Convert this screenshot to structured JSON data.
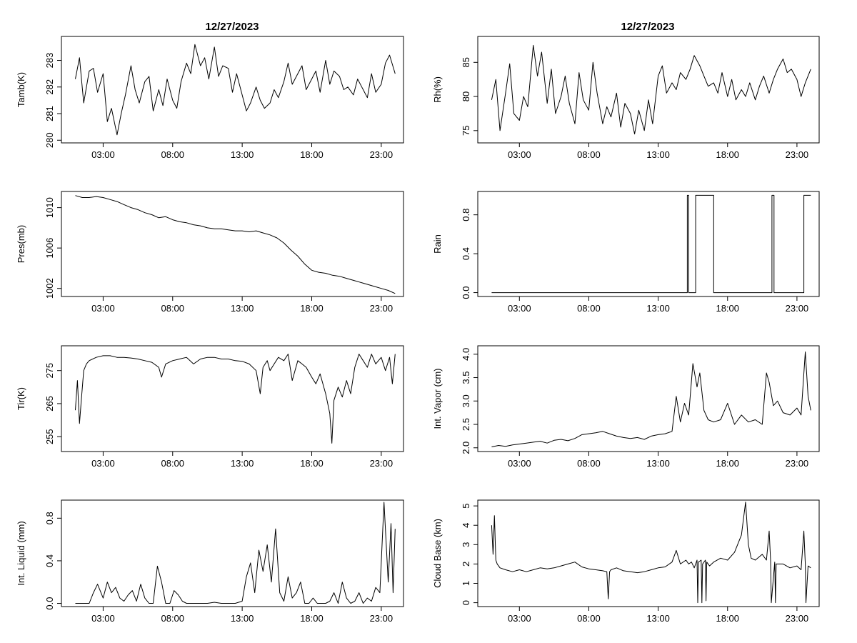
{
  "page": {
    "date_title": "12/27/2023"
  },
  "chart_data": [
    {
      "id": "tamb",
      "type": "line",
      "title": "12/27/2023",
      "ylabel": "Tamb(K)",
      "xlim": [
        0,
        24.6
      ],
      "ylim": [
        279.9,
        283.9
      ],
      "xticks": [
        3,
        8,
        13,
        18,
        23
      ],
      "xtick_labels": [
        "03:00",
        "08:00",
        "13:00",
        "18:00",
        "23:00"
      ],
      "yticks": [
        280,
        281,
        282,
        283
      ],
      "ytick_labels": [
        "280",
        "281",
        "282",
        "283"
      ],
      "x": [
        1.0,
        1.3,
        1.6,
        2.0,
        2.3,
        2.6,
        3.0,
        3.3,
        3.6,
        4.0,
        4.3,
        4.6,
        5.0,
        5.3,
        5.6,
        6.0,
        6.3,
        6.6,
        7.0,
        7.3,
        7.6,
        8.0,
        8.3,
        8.6,
        9.0,
        9.3,
        9.6,
        10.0,
        10.3,
        10.6,
        11.0,
        11.3,
        11.6,
        12.0,
        12.3,
        12.6,
        13.0,
        13.3,
        13.6,
        14.0,
        14.3,
        14.6,
        15.0,
        15.3,
        15.6,
        16.0,
        16.3,
        16.6,
        17.0,
        17.3,
        17.6,
        18.0,
        18.3,
        18.6,
        19.0,
        19.3,
        19.6,
        20.0,
        20.3,
        20.6,
        21.0,
        21.3,
        21.6,
        22.0,
        22.3,
        22.6,
        23.0,
        23.3,
        23.6,
        24.0
      ],
      "values": [
        282.3,
        283.1,
        281.4,
        282.6,
        282.7,
        281.8,
        282.5,
        280.7,
        281.2,
        280.2,
        281.0,
        281.7,
        282.8,
        281.9,
        281.4,
        282.2,
        282.4,
        281.1,
        281.9,
        281.3,
        282.3,
        281.5,
        281.2,
        282.2,
        282.9,
        282.5,
        283.6,
        282.8,
        283.1,
        282.3,
        283.5,
        282.4,
        282.8,
        282.7,
        281.8,
        282.5,
        281.7,
        281.1,
        281.4,
        282.0,
        281.5,
        281.2,
        281.4,
        281.9,
        281.6,
        282.2,
        282.9,
        282.1,
        282.5,
        282.8,
        281.9,
        282.3,
        282.6,
        281.8,
        283.0,
        282.1,
        282.6,
        282.4,
        281.9,
        282.0,
        281.7,
        282.3,
        282.0,
        281.6,
        282.5,
        281.8,
        282.1,
        282.9,
        283.2,
        282.5
      ]
    },
    {
      "id": "rh",
      "type": "line",
      "title": "12/27/2023",
      "ylabel": "Rh(%)",
      "xlim": [
        0,
        24.6
      ],
      "ylim": [
        73.2,
        88.8
      ],
      "xticks": [
        3,
        8,
        13,
        18,
        23
      ],
      "xtick_labels": [
        "03:00",
        "08:00",
        "13:00",
        "18:00",
        "23:00"
      ],
      "yticks": [
        75,
        80,
        85
      ],
      "ytick_labels": [
        "75",
        "80",
        "85"
      ],
      "x": [
        1.0,
        1.3,
        1.6,
        2.0,
        2.3,
        2.6,
        3.0,
        3.3,
        3.6,
        4.0,
        4.3,
        4.6,
        5.0,
        5.3,
        5.6,
        6.0,
        6.3,
        6.6,
        7.0,
        7.3,
        7.6,
        8.0,
        8.3,
        8.6,
        9.0,
        9.3,
        9.6,
        10.0,
        10.3,
        10.6,
        11.0,
        11.3,
        11.6,
        12.0,
        12.3,
        12.6,
        13.0,
        13.3,
        13.6,
        14.0,
        14.3,
        14.6,
        15.0,
        15.3,
        15.6,
        16.0,
        16.3,
        16.6,
        17.0,
        17.3,
        17.6,
        18.0,
        18.3,
        18.6,
        19.0,
        19.3,
        19.6,
        20.0,
        20.3,
        20.6,
        21.0,
        21.3,
        21.6,
        22.0,
        22.3,
        22.6,
        23.0,
        23.3,
        23.6,
        24.0
      ],
      "values": [
        79.5,
        82.5,
        75.0,
        80.5,
        84.8,
        77.5,
        76.5,
        80.0,
        78.5,
        87.5,
        83.0,
        86.5,
        79.0,
        84.0,
        77.5,
        80.0,
        83.0,
        79.0,
        76.0,
        83.5,
        79.5,
        78.0,
        85.0,
        80.5,
        76.0,
        78.5,
        77.0,
        80.5,
        75.5,
        79.0,
        77.5,
        74.5,
        78.0,
        75.0,
        79.5,
        76.0,
        83.0,
        84.5,
        80.5,
        82.0,
        81.0,
        83.5,
        82.5,
        84.0,
        86.0,
        84.5,
        83.0,
        81.5,
        82.0,
        80.5,
        83.5,
        80.0,
        82.5,
        79.5,
        81.0,
        80.0,
        82.0,
        79.5,
        81.5,
        83.0,
        80.5,
        82.5,
        84.0,
        85.5,
        83.5,
        84.0,
        82.5,
        80.0,
        82.0,
        84.0
      ]
    },
    {
      "id": "pres",
      "type": "line",
      "ylabel": "Pres(mb)",
      "xlim": [
        0,
        24.6
      ],
      "ylim": [
        1001.2,
        1011.6
      ],
      "xticks": [
        3,
        8,
        13,
        18,
        23
      ],
      "xtick_labels": [
        "03:00",
        "08:00",
        "13:00",
        "18:00",
        "23:00"
      ],
      "yticks": [
        1002,
        1006,
        1010
      ],
      "ytick_labels": [
        "1002",
        "1006",
        "1010"
      ],
      "x": [
        1.0,
        1.5,
        2.0,
        2.5,
        3.0,
        3.5,
        4.0,
        4.5,
        5.0,
        5.5,
        6.0,
        6.5,
        7.0,
        7.5,
        8.0,
        8.5,
        9.0,
        9.5,
        10.0,
        10.5,
        11.0,
        11.5,
        12.0,
        12.5,
        13.0,
        13.5,
        14.0,
        14.5,
        15.0,
        15.5,
        16.0,
        16.5,
        17.0,
        17.5,
        18.0,
        18.5,
        19.0,
        19.5,
        20.0,
        20.5,
        21.0,
        21.5,
        22.0,
        22.5,
        23.0,
        23.5,
        24.0
      ],
      "values": [
        1011.2,
        1011.0,
        1011.0,
        1011.1,
        1011.0,
        1010.8,
        1010.6,
        1010.3,
        1010.0,
        1009.8,
        1009.5,
        1009.3,
        1009.0,
        1009.1,
        1008.8,
        1008.6,
        1008.5,
        1008.3,
        1008.2,
        1008.0,
        1007.9,
        1007.9,
        1007.8,
        1007.7,
        1007.7,
        1007.6,
        1007.7,
        1007.5,
        1007.3,
        1007.0,
        1006.5,
        1005.8,
        1005.2,
        1004.4,
        1003.8,
        1003.6,
        1003.5,
        1003.3,
        1003.2,
        1003.0,
        1002.8,
        1002.6,
        1002.4,
        1002.2,
        1002.0,
        1001.8,
        1001.5
      ]
    },
    {
      "id": "rain",
      "type": "line",
      "ylabel": "Rain",
      "xlim": [
        0,
        24.6
      ],
      "ylim": [
        -0.04,
        1.04
      ],
      "xticks": [
        3,
        8,
        13,
        18,
        23
      ],
      "xtick_labels": [
        "03:00",
        "08:00",
        "13:00",
        "18:00",
        "23:00"
      ],
      "yticks": [
        0.0,
        0.4,
        0.8
      ],
      "ytick_labels": [
        "0.0",
        "0.4",
        "0.8"
      ],
      "x": [
        1.0,
        15.1,
        15.1,
        15.2,
        15.2,
        15.7,
        15.7,
        17.0,
        17.0,
        21.2,
        21.2,
        21.35,
        21.35,
        23.5,
        23.5,
        24.0
      ],
      "values": [
        0,
        0,
        1,
        1,
        0,
        0,
        1,
        1,
        0,
        0,
        1,
        1,
        0,
        0,
        1,
        1
      ]
    },
    {
      "id": "tir",
      "type": "line",
      "ylabel": "Tir(K)",
      "xlim": [
        0,
        24.6
      ],
      "ylim": [
        250.5,
        282.5
      ],
      "xticks": [
        3,
        8,
        13,
        18,
        23
      ],
      "xtick_labels": [
        "03:00",
        "08:00",
        "13:00",
        "18:00",
        "23:00"
      ],
      "yticks": [
        255,
        265,
        275
      ],
      "ytick_labels": [
        "255",
        "265",
        "275"
      ],
      "x": [
        1.0,
        1.15,
        1.3,
        1.45,
        1.6,
        1.8,
        2.0,
        2.5,
        3.0,
        3.5,
        4.0,
        4.5,
        5.0,
        5.5,
        6.0,
        6.5,
        7.0,
        7.2,
        7.5,
        8.0,
        8.5,
        9.0,
        9.5,
        10.0,
        10.5,
        11.0,
        11.5,
        12.0,
        12.5,
        13.0,
        13.5,
        14.0,
        14.3,
        14.5,
        14.8,
        15.0,
        15.3,
        15.6,
        16.0,
        16.3,
        16.6,
        17.0,
        17.3,
        17.6,
        18.0,
        18.3,
        18.6,
        19.0,
        19.3,
        19.45,
        19.6,
        19.9,
        20.2,
        20.5,
        20.8,
        21.1,
        21.4,
        21.7,
        22.0,
        22.3,
        22.6,
        23.0,
        23.3,
        23.6,
        23.8,
        24.0
      ],
      "values": [
        263,
        272,
        259,
        267,
        275,
        277,
        278,
        279,
        279.5,
        279.5,
        279,
        279,
        278.8,
        278.5,
        278,
        277.5,
        276,
        273,
        277,
        278,
        278.5,
        279,
        277,
        278.5,
        279,
        279,
        278.5,
        278.5,
        278,
        277.8,
        277,
        275,
        268,
        276,
        278,
        275,
        277,
        279,
        278,
        280,
        272,
        278,
        277,
        276,
        273,
        271,
        274,
        268,
        262,
        253,
        266,
        270,
        267,
        272,
        268,
        276,
        280,
        278,
        276,
        280,
        277,
        279,
        275,
        279,
        271,
        280
      ]
    },
    {
      "id": "vapor",
      "type": "line",
      "ylabel": "Int. Vapor (cm)",
      "xlim": [
        0,
        24.6
      ],
      "ylim": [
        1.92,
        4.18
      ],
      "xticks": [
        3,
        8,
        13,
        18,
        23
      ],
      "xtick_labels": [
        "03:00",
        "08:00",
        "13:00",
        "18:00",
        "23:00"
      ],
      "yticks": [
        2.0,
        2.5,
        3.0,
        3.5,
        4.0
      ],
      "ytick_labels": [
        "2.0",
        "2.5",
        "3.0",
        "3.5",
        "4.0"
      ],
      "x": [
        1.0,
        1.5,
        2.0,
        2.5,
        3.0,
        3.5,
        4.0,
        4.5,
        5.0,
        5.5,
        6.0,
        6.5,
        7.0,
        7.5,
        8.0,
        8.5,
        9.0,
        9.5,
        10.0,
        10.5,
        11.0,
        11.5,
        12.0,
        12.5,
        13.0,
        13.5,
        14.0,
        14.3,
        14.6,
        14.9,
        15.2,
        15.5,
        15.8,
        16.0,
        16.3,
        16.6,
        17.0,
        17.5,
        18.0,
        18.5,
        19.0,
        19.5,
        20.0,
        20.5,
        20.8,
        21.0,
        21.3,
        21.6,
        22.0,
        22.5,
        23.0,
        23.3,
        23.6,
        23.8,
        24.0
      ],
      "values": [
        2.02,
        2.05,
        2.03,
        2.06,
        2.08,
        2.1,
        2.12,
        2.14,
        2.1,
        2.16,
        2.18,
        2.15,
        2.2,
        2.28,
        2.3,
        2.32,
        2.35,
        2.3,
        2.25,
        2.22,
        2.2,
        2.22,
        2.18,
        2.25,
        2.28,
        2.3,
        2.35,
        3.1,
        2.55,
        2.95,
        2.7,
        3.8,
        3.3,
        3.6,
        2.8,
        2.6,
        2.55,
        2.6,
        2.95,
        2.5,
        2.7,
        2.55,
        2.6,
        2.5,
        3.6,
        3.4,
        2.9,
        3.0,
        2.75,
        2.7,
        2.85,
        2.7,
        4.05,
        3.1,
        2.8
      ]
    },
    {
      "id": "liquid",
      "type": "line",
      "ylabel": "Int. Liquid (mm)",
      "xlim": [
        0,
        24.6
      ],
      "ylim": [
        -0.03,
        0.97
      ],
      "xticks": [
        3,
        8,
        13,
        18,
        23
      ],
      "xtick_labels": [
        "03:00",
        "08:00",
        "13:00",
        "18:00",
        "23:00"
      ],
      "yticks": [
        0.0,
        0.4,
        0.8
      ],
      "ytick_labels": [
        "0.0",
        "0.4",
        "0.8"
      ],
      "x": [
        1.0,
        1.5,
        2.0,
        2.3,
        2.6,
        3.0,
        3.3,
        3.6,
        3.9,
        4.2,
        4.5,
        4.8,
        5.1,
        5.4,
        5.7,
        6.0,
        6.3,
        6.6,
        6.9,
        7.2,
        7.5,
        7.8,
        8.1,
        8.4,
        8.7,
        9.0,
        9.3,
        9.6,
        10.0,
        10.5,
        11.0,
        11.5,
        12.0,
        12.5,
        13.0,
        13.3,
        13.6,
        13.9,
        14.2,
        14.5,
        14.8,
        15.1,
        15.4,
        15.7,
        16.0,
        16.3,
        16.6,
        16.9,
        17.2,
        17.5,
        17.8,
        18.1,
        18.4,
        18.7,
        19.0,
        19.3,
        19.6,
        19.9,
        20.2,
        20.5,
        20.8,
        21.1,
        21.4,
        21.7,
        22.0,
        22.3,
        22.6,
        22.9,
        23.2,
        23.5,
        23.7,
        23.85,
        24.0
      ],
      "values": [
        0.0,
        0.0,
        0.0,
        0.1,
        0.18,
        0.05,
        0.2,
        0.1,
        0.15,
        0.05,
        0.02,
        0.08,
        0.12,
        0.02,
        0.18,
        0.05,
        0.0,
        0.0,
        0.35,
        0.2,
        0.0,
        0.0,
        0.12,
        0.08,
        0.02,
        0.0,
        0.0,
        0.0,
        0.0,
        0.0,
        0.01,
        0.0,
        0.0,
        0.0,
        0.02,
        0.25,
        0.38,
        0.1,
        0.5,
        0.3,
        0.55,
        0.2,
        0.7,
        0.1,
        0.02,
        0.25,
        0.05,
        0.1,
        0.2,
        0.0,
        0.0,
        0.05,
        0.0,
        0.0,
        0.0,
        0.02,
        0.1,
        0.0,
        0.2,
        0.05,
        0.0,
        0.02,
        0.1,
        0.0,
        0.05,
        0.02,
        0.15,
        0.1,
        0.95,
        0.2,
        0.75,
        0.1,
        0.7
      ]
    },
    {
      "id": "cloudbase",
      "type": "line",
      "ylabel": "Cloud Base (km)",
      "xlim": [
        0,
        24.6
      ],
      "ylim": [
        -0.2,
        5.3
      ],
      "xticks": [
        3,
        8,
        13,
        18,
        23
      ],
      "xtick_labels": [
        "03:00",
        "08:00",
        "13:00",
        "18:00",
        "23:00"
      ],
      "yticks": [
        0,
        1,
        2,
        3,
        4,
        5
      ],
      "ytick_labels": [
        "0",
        "1",
        "2",
        "3",
        "4",
        "5"
      ],
      "x": [
        1.0,
        1.1,
        1.2,
        1.3,
        1.4,
        1.6,
        2.0,
        2.5,
        3.0,
        3.5,
        4.0,
        4.5,
        5.0,
        5.5,
        6.0,
        6.5,
        7.0,
        7.5,
        8.0,
        8.5,
        9.0,
        9.3,
        9.4,
        9.5,
        9.6,
        10.0,
        10.5,
        11.0,
        11.5,
        12.0,
        12.5,
        13.0,
        13.5,
        14.0,
        14.3,
        14.6,
        15.0,
        15.2,
        15.4,
        15.6,
        15.8,
        15.85,
        15.9,
        16.1,
        16.15,
        16.2,
        16.4,
        16.45,
        16.5,
        16.7,
        17.0,
        17.5,
        18.0,
        18.5,
        19.0,
        19.3,
        19.5,
        19.7,
        20.0,
        20.5,
        20.8,
        21.0,
        21.1,
        21.15,
        21.4,
        21.45,
        21.5,
        22.0,
        22.5,
        23.0,
        23.3,
        23.5,
        23.6,
        23.65,
        23.8,
        24.0
      ],
      "values": [
        4.0,
        2.5,
        4.5,
        2.2,
        2.0,
        1.8,
        1.7,
        1.6,
        1.7,
        1.6,
        1.7,
        1.8,
        1.75,
        1.8,
        1.9,
        2.0,
        2.1,
        1.85,
        1.75,
        1.7,
        1.65,
        1.6,
        0.2,
        1.6,
        1.7,
        1.8,
        1.65,
        1.6,
        1.55,
        1.6,
        1.7,
        1.8,
        1.85,
        2.1,
        2.7,
        2.0,
        2.2,
        2.0,
        2.1,
        1.8,
        2.2,
        0.0,
        2.1,
        2.2,
        0.0,
        2.0,
        2.2,
        0.1,
        2.1,
        1.9,
        2.1,
        2.3,
        2.2,
        2.6,
        3.5,
        5.2,
        3.0,
        2.3,
        2.2,
        2.5,
        2.2,
        3.7,
        2.2,
        0.0,
        2.1,
        0.0,
        2.0,
        2.0,
        1.8,
        1.9,
        1.7,
        3.7,
        2.0,
        0.0,
        1.9,
        1.8
      ]
    }
  ]
}
